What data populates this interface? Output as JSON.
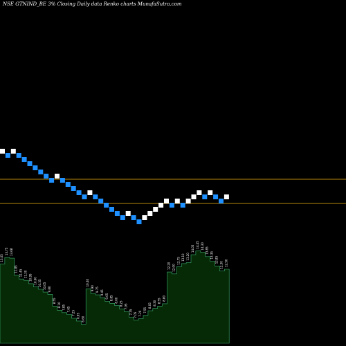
{
  "chart_data": {
    "type": "renko",
    "title": "NSE GTNIND_BE 3% Closing Daily data Renko charts MunafaSutra.com",
    "colors": {
      "background": "#000000",
      "up_brick": "#ffffff",
      "down_brick": "#1e90ff",
      "level_line": "#b8860b",
      "volume_fill": "#062a06",
      "volume_stroke": "#3cb371",
      "label": "#ffffff"
    },
    "bricks": [
      {
        "dir": "up"
      },
      {
        "dir": "down"
      },
      {
        "dir": "up"
      },
      {
        "dir": "down"
      },
      {
        "dir": "down"
      },
      {
        "dir": "down"
      },
      {
        "dir": "down"
      },
      {
        "dir": "down"
      },
      {
        "dir": "down"
      },
      {
        "dir": "down"
      },
      {
        "dir": "up"
      },
      {
        "dir": "down"
      },
      {
        "dir": "down"
      },
      {
        "dir": "down"
      },
      {
        "dir": "down"
      },
      {
        "dir": "down"
      },
      {
        "dir": "up"
      },
      {
        "dir": "down"
      },
      {
        "dir": "down"
      },
      {
        "dir": "down"
      },
      {
        "dir": "down"
      },
      {
        "dir": "down"
      },
      {
        "dir": "down"
      },
      {
        "dir": "up"
      },
      {
        "dir": "down"
      },
      {
        "dir": "down"
      },
      {
        "dir": "up"
      },
      {
        "dir": "up"
      },
      {
        "dir": "up"
      },
      {
        "dir": "up"
      },
      {
        "dir": "up"
      },
      {
        "dir": "down"
      },
      {
        "dir": "up"
      },
      {
        "dir": "down"
      },
      {
        "dir": "up"
      },
      {
        "dir": "up"
      },
      {
        "dir": "up"
      },
      {
        "dir": "down"
      },
      {
        "dir": "up"
      },
      {
        "dir": "down"
      },
      {
        "dir": "down"
      },
      {
        "dir": "up"
      }
    ],
    "levels": [
      {
        "value": "upper"
      },
      {
        "value": "lower"
      }
    ],
    "volume_labels": [
      "13.05",
      "13.75",
      "13.68",
      "11.85",
      "11.45",
      "11.30",
      "10.95",
      "10.60",
      "10.35",
      "10.05",
      "9.80",
      "8.55",
      "8.10",
      "7.85",
      "7.65",
      "7.25",
      "6.95",
      "6.60",
      "10.40",
      "9.90",
      "9.75",
      "9.45",
      "9.05",
      "8.85",
      "8.60",
      "8.25",
      "7.95",
      "7.35",
      "7.05",
      "7.20",
      "7.55",
      "8.05",
      "8.30",
      "8.55",
      "8.80",
      "12.20",
      "12.00",
      "12.75",
      "13.10",
      "13.20",
      "14.05",
      "14.45",
      "14.30",
      "13.85",
      "13.35",
      "12.85",
      "12.30",
      "12.50"
    ]
  }
}
